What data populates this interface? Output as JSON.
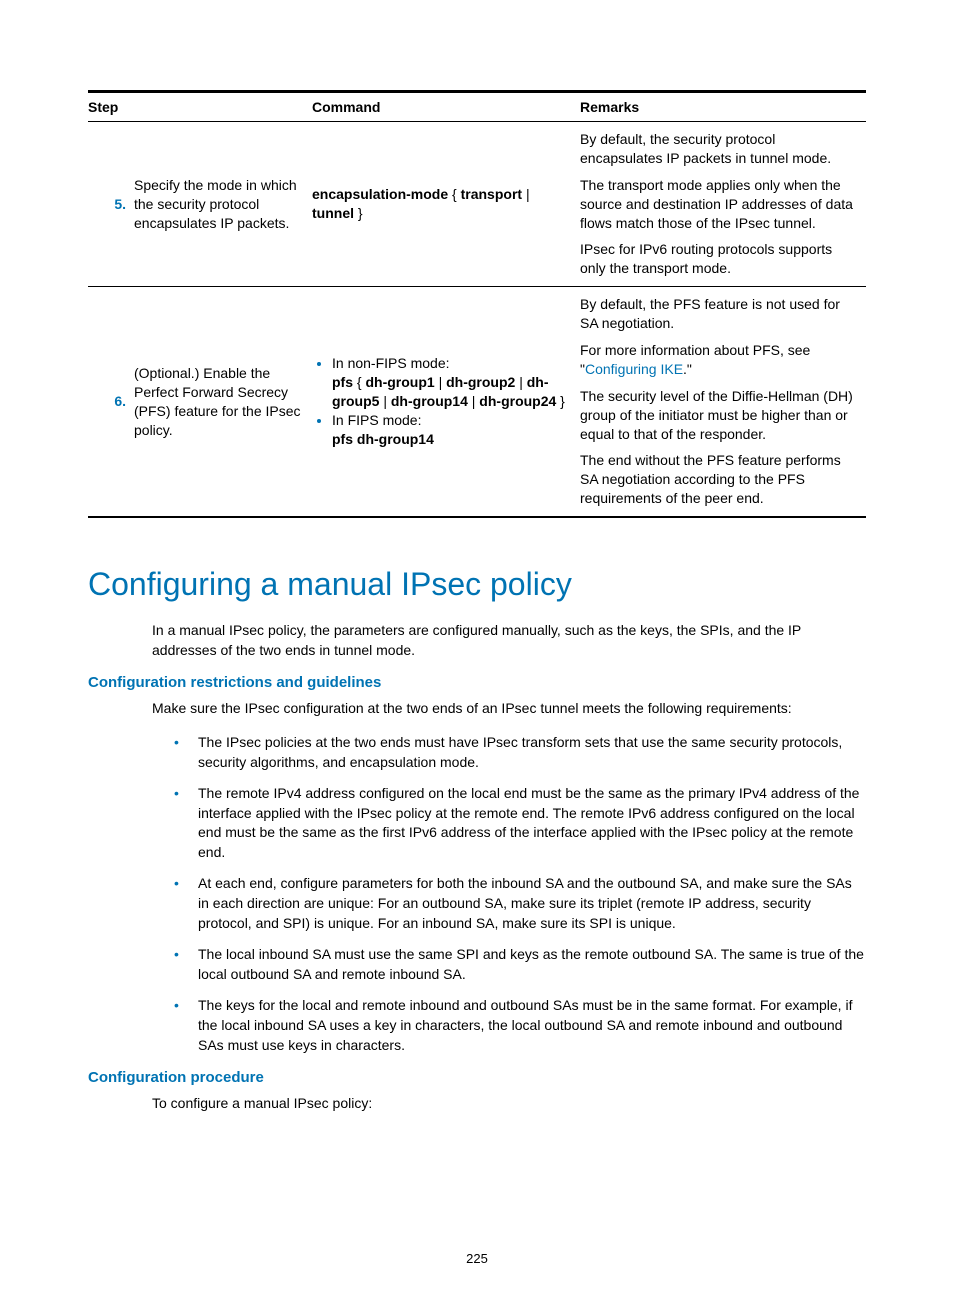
{
  "table": {
    "headers": {
      "step": "Step",
      "command": "Command",
      "remarks": "Remarks"
    },
    "rows": [
      {
        "num": "5.",
        "desc": "Specify the mode in which the security protocol encapsulates IP packets.",
        "cmd_prefix_bold": "encapsulation-mode",
        "cmd_mid": " { ",
        "cmd_opt1": "transport",
        "cmd_sep": " | ",
        "cmd_opt2": "tunnel",
        "cmd_suffix": " }",
        "remark1": "By default, the security protocol encapsulates IP packets in tunnel mode.",
        "remark2": "The transport mode applies only when the source and destination IP addresses of data flows match those of the IPsec tunnel.",
        "remark3": "IPsec for IPv6 routing protocols supports only the transport mode."
      },
      {
        "num": "6.",
        "desc": "(Optional.) Enable the Perfect Forward Secrecy (PFS) feature for the IPsec policy.",
        "li1_intro": "In non-FIPS mode:",
        "li1_b1": "pfs",
        "li1_t1": " { ",
        "li1_b2": "dh-group1",
        "li1_t2": " | ",
        "li1_b3": "dh-group2",
        "li1_t3": " | ",
        "li1_b4": "dh-group5",
        "li1_t4": " | ",
        "li1_b5": "dh-group14",
        "li1_t5": " | ",
        "li1_b6": "dh-group24",
        "li1_t6": " }",
        "li2_intro": "In FIPS mode:",
        "li2_b": "pfs dh-group14",
        "remark1": "By default, the PFS feature is not used for SA negotiation.",
        "remark2a": "For more information about PFS, see \"",
        "remark2link": "Configuring IKE",
        "remark2b": ".\"",
        "remark3": "The security level of the Diffie-Hellman (DH) group of the initiator must be higher than or equal to that of the responder.",
        "remark4": "The end without the PFS feature performs SA negotiation according to the PFS requirements of the peer end."
      }
    ]
  },
  "section_title": "Configuring a manual IPsec policy",
  "intro_para": "In a manual IPsec policy, the parameters are configured manually, such as the keys, the SPIs, and the IP addresses of the two ends in tunnel mode.",
  "sub1": "Configuration restrictions and guidelines",
  "sub1_intro": "Make sure the IPsec configuration at the two ends of an IPsec tunnel meets the following requirements:",
  "bullets": [
    "The IPsec policies at the two ends must have IPsec transform sets that use the same security protocols, security algorithms, and encapsulation mode.",
    "The remote IPv4 address configured on the local end must be the same as the primary IPv4 address of the interface applied with the IPsec policy at the remote end. The remote IPv6 address configured on the local end must be the same as the first IPv6 address of the interface applied with the IPsec policy at the remote end.",
    "At each end, configure parameters for both the inbound SA and the outbound SA, and make sure the SAs in each direction are unique: For an outbound SA, make sure its triplet (remote IP address, security protocol, and SPI) is unique. For an inbound SA, make sure its SPI is unique.",
    "The local inbound SA must use the same SPI and keys as the remote outbound SA. The same is true of the local outbound SA and remote inbound SA.",
    "The keys for the local and remote inbound and outbound SAs must be in the same format. For example, if the local inbound SA uses a key in characters, the local outbound SA and remote inbound and outbound SAs must use keys in characters."
  ],
  "sub2": "Configuration procedure",
  "sub2_intro": "To configure a manual IPsec policy:",
  "page_num": "225",
  "colors": {
    "accent": "#0073b3"
  }
}
